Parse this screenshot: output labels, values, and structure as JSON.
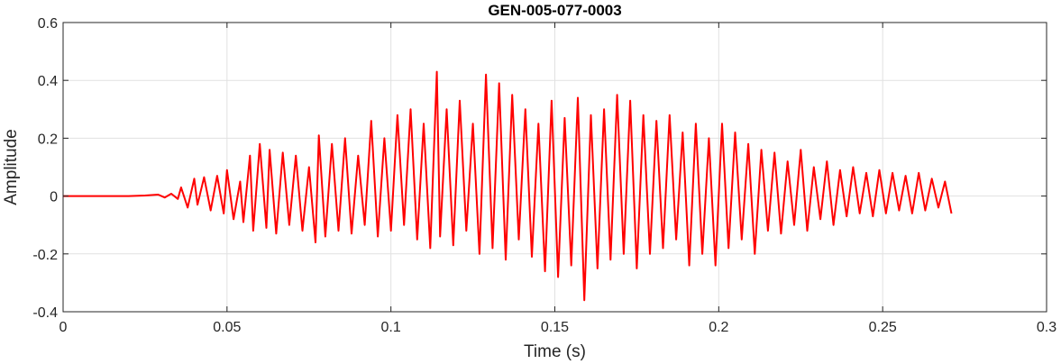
{
  "chart_data": {
    "type": "line",
    "title": "GEN-005-077-0003",
    "xlabel": "Time (s)",
    "ylabel": "Amplitude",
    "xlim": [
      0,
      0.3
    ],
    "ylim": [
      -0.4,
      0.6
    ],
    "xticks": [
      0,
      0.05,
      0.1,
      0.15,
      0.2,
      0.25,
      0.3
    ],
    "xtick_labels": [
      "0",
      "0.05",
      "0.1",
      "0.15",
      "0.2",
      "0.25",
      "0.3"
    ],
    "yticks": [
      -0.4,
      -0.2,
      0,
      0.2,
      0.4,
      0.6
    ],
    "ytick_labels": [
      "-0.4",
      "-0.2",
      "0",
      "0.2",
      "0.4",
      "0.6"
    ],
    "grid": true,
    "line_color": "#ff0000",
    "series": [
      {
        "x": [
          0,
          0.005,
          0.01,
          0.015,
          0.02,
          0.025,
          0.029,
          0.031,
          0.033,
          0.035,
          0.036,
          0.038,
          0.04,
          0.041,
          0.043,
          0.045,
          0.047,
          0.049,
          0.05,
          0.052,
          0.054,
          0.055,
          0.057,
          0.058,
          0.06,
          0.062,
          0.063,
          0.065,
          0.067,
          0.069,
          0.071,
          0.073,
          0.075,
          0.077,
          0.078,
          0.08,
          0.082,
          0.084,
          0.086,
          0.088,
          0.09,
          0.092,
          0.094,
          0.096,
          0.098,
          0.1,
          0.102,
          0.104,
          0.106,
          0.108,
          0.11,
          0.112,
          0.114,
          0.115,
          0.117,
          0.119,
          0.121,
          0.123,
          0.125,
          0.127,
          0.129,
          0.131,
          0.133,
          0.135,
          0.137,
          0.139,
          0.141,
          0.143,
          0.145,
          0.147,
          0.149,
          0.151,
          0.153,
          0.155,
          0.157,
          0.159,
          0.161,
          0.163,
          0.165,
          0.167,
          0.169,
          0.171,
          0.173,
          0.175,
          0.177,
          0.179,
          0.181,
          0.183,
          0.185,
          0.187,
          0.189,
          0.191,
          0.193,
          0.195,
          0.197,
          0.199,
          0.201,
          0.203,
          0.205,
          0.207,
          0.209,
          0.211,
          0.213,
          0.215,
          0.217,
          0.219,
          0.221,
          0.223,
          0.225,
          0.227,
          0.229,
          0.231,
          0.233,
          0.235,
          0.237,
          0.239,
          0.241,
          0.243,
          0.245,
          0.247,
          0.249,
          0.251,
          0.253,
          0.255,
          0.257,
          0.259,
          0.261,
          0.263,
          0.265,
          0.267,
          0.269,
          0.271
        ],
        "y": [
          0,
          0,
          0,
          0,
          0,
          0.002,
          0.005,
          -0.005,
          0.008,
          -0.01,
          0.03,
          -0.04,
          0.06,
          -0.03,
          0.065,
          -0.05,
          0.07,
          -0.06,
          0.09,
          -0.08,
          0.05,
          -0.09,
          0.14,
          -0.12,
          0.18,
          -0.11,
          0.16,
          -0.13,
          0.15,
          -0.1,
          0.14,
          -0.12,
          0.1,
          -0.16,
          0.21,
          -0.14,
          0.18,
          -0.12,
          0.2,
          -0.13,
          0.14,
          -0.1,
          0.26,
          -0.14,
          0.2,
          -0.12,
          0.28,
          -0.1,
          0.3,
          -0.15,
          0.25,
          -0.18,
          0.43,
          -0.14,
          0.3,
          -0.17,
          0.33,
          -0.12,
          0.25,
          -0.2,
          0.42,
          -0.18,
          0.39,
          -0.22,
          0.35,
          -0.15,
          0.3,
          -0.21,
          0.25,
          -0.26,
          0.33,
          -0.28,
          0.27,
          -0.24,
          0.34,
          -0.36,
          0.28,
          -0.25,
          0.3,
          -0.22,
          0.35,
          -0.2,
          0.33,
          -0.25,
          0.28,
          -0.2,
          0.26,
          -0.18,
          0.28,
          -0.15,
          0.22,
          -0.24,
          0.25,
          -0.2,
          0.2,
          -0.24,
          0.25,
          -0.18,
          0.22,
          -0.15,
          0.18,
          -0.2,
          0.16,
          -0.12,
          0.15,
          -0.13,
          0.12,
          -0.1,
          0.16,
          -0.12,
          0.1,
          -0.08,
          0.12,
          -0.1,
          0.09,
          -0.07,
          0.1,
          -0.06,
          0.08,
          -0.07,
          0.09,
          -0.06,
          0.08,
          -0.05,
          0.07,
          -0.06,
          0.08,
          -0.05,
          0.06,
          -0.04,
          0.05,
          -0.06
        ]
      }
    ]
  }
}
